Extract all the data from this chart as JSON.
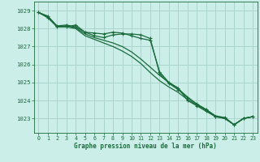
{
  "xlabel": "Graphe pression niveau de la mer (hPa)",
  "background_color": "#cceee8",
  "grid_color": "#aad4cc",
  "line_color": "#1a6b3c",
  "xlim": [
    -0.5,
    23.5
  ],
  "ylim": [
    1022.2,
    1029.5
  ],
  "yticks": [
    1023,
    1024,
    1025,
    1026,
    1027,
    1028,
    1029
  ],
  "xticks": [
    0,
    1,
    2,
    3,
    4,
    5,
    6,
    7,
    8,
    9,
    10,
    11,
    12,
    13,
    14,
    15,
    16,
    17,
    18,
    19,
    20,
    21,
    22,
    23
  ],
  "series": [
    {
      "x": [
        0,
        1,
        2,
        3,
        4,
        5,
        6,
        7,
        8,
        9,
        10,
        11,
        12,
        13,
        14,
        15,
        16,
        17,
        18,
        19,
        20,
        21,
        22,
        23
      ],
      "y": [
        1028.9,
        1028.6,
        1028.1,
        1028.1,
        1028.2,
        1027.8,
        1027.75,
        1027.7,
        1027.8,
        1027.75,
        1027.6,
        1027.45,
        1027.35,
        1025.6,
        1025.0,
        1024.7,
        1024.0,
        1023.7,
        1023.4,
        1023.1,
        1023.05,
        1022.65,
        1023.0,
        1023.1
      ],
      "has_markers": true,
      "lw": 0.9
    },
    {
      "x": [
        0,
        1,
        2,
        3,
        4,
        5,
        6,
        7,
        8,
        9,
        10,
        11,
        12,
        13,
        14,
        15,
        16,
        17,
        18,
        19,
        20,
        21,
        22,
        23
      ],
      "y": [
        1028.9,
        1028.65,
        1028.1,
        1028.15,
        1028.05,
        1027.7,
        1027.5,
        1027.35,
        1027.2,
        1027.0,
        1026.7,
        1026.3,
        1025.85,
        1025.4,
        1025.0,
        1024.65,
        1024.2,
        1023.8,
        1023.5,
        1023.15,
        1023.05,
        1022.65,
        1023.0,
        1023.1
      ],
      "has_markers": false,
      "lw": 0.9
    },
    {
      "x": [
        0,
        1,
        2,
        3,
        4,
        5,
        6,
        7,
        8,
        9,
        10,
        11,
        12,
        13,
        14,
        15,
        16,
        17,
        18,
        19,
        20,
        21,
        22,
        23
      ],
      "y": [
        1028.9,
        1028.65,
        1028.1,
        1028.1,
        1028.0,
        1027.6,
        1027.4,
        1027.2,
        1027.0,
        1026.75,
        1026.45,
        1026.05,
        1025.55,
        1025.1,
        1024.75,
        1024.45,
        1024.05,
        1023.75,
        1023.45,
        1023.1,
        1023.0,
        1022.65,
        1023.0,
        1023.1
      ],
      "has_markers": false,
      "lw": 0.9
    },
    {
      "x": [
        0,
        1,
        2,
        3,
        4,
        5,
        6,
        7,
        8,
        9,
        10,
        11,
        12,
        13,
        14,
        15,
        16,
        17,
        18,
        19,
        20,
        21,
        22,
        23
      ],
      "y": [
        1028.9,
        1028.7,
        1028.15,
        1028.2,
        1028.1,
        1027.8,
        1027.6,
        1027.5,
        1027.65,
        1027.7,
        1027.7,
        1027.65,
        1027.45,
        1025.5,
        1024.95,
        1024.6,
        1024.15,
        1023.8,
        1023.5,
        1023.1,
        1023.0,
        1022.65,
        1023.0,
        1023.1
      ],
      "has_markers": true,
      "lw": 0.9
    }
  ]
}
